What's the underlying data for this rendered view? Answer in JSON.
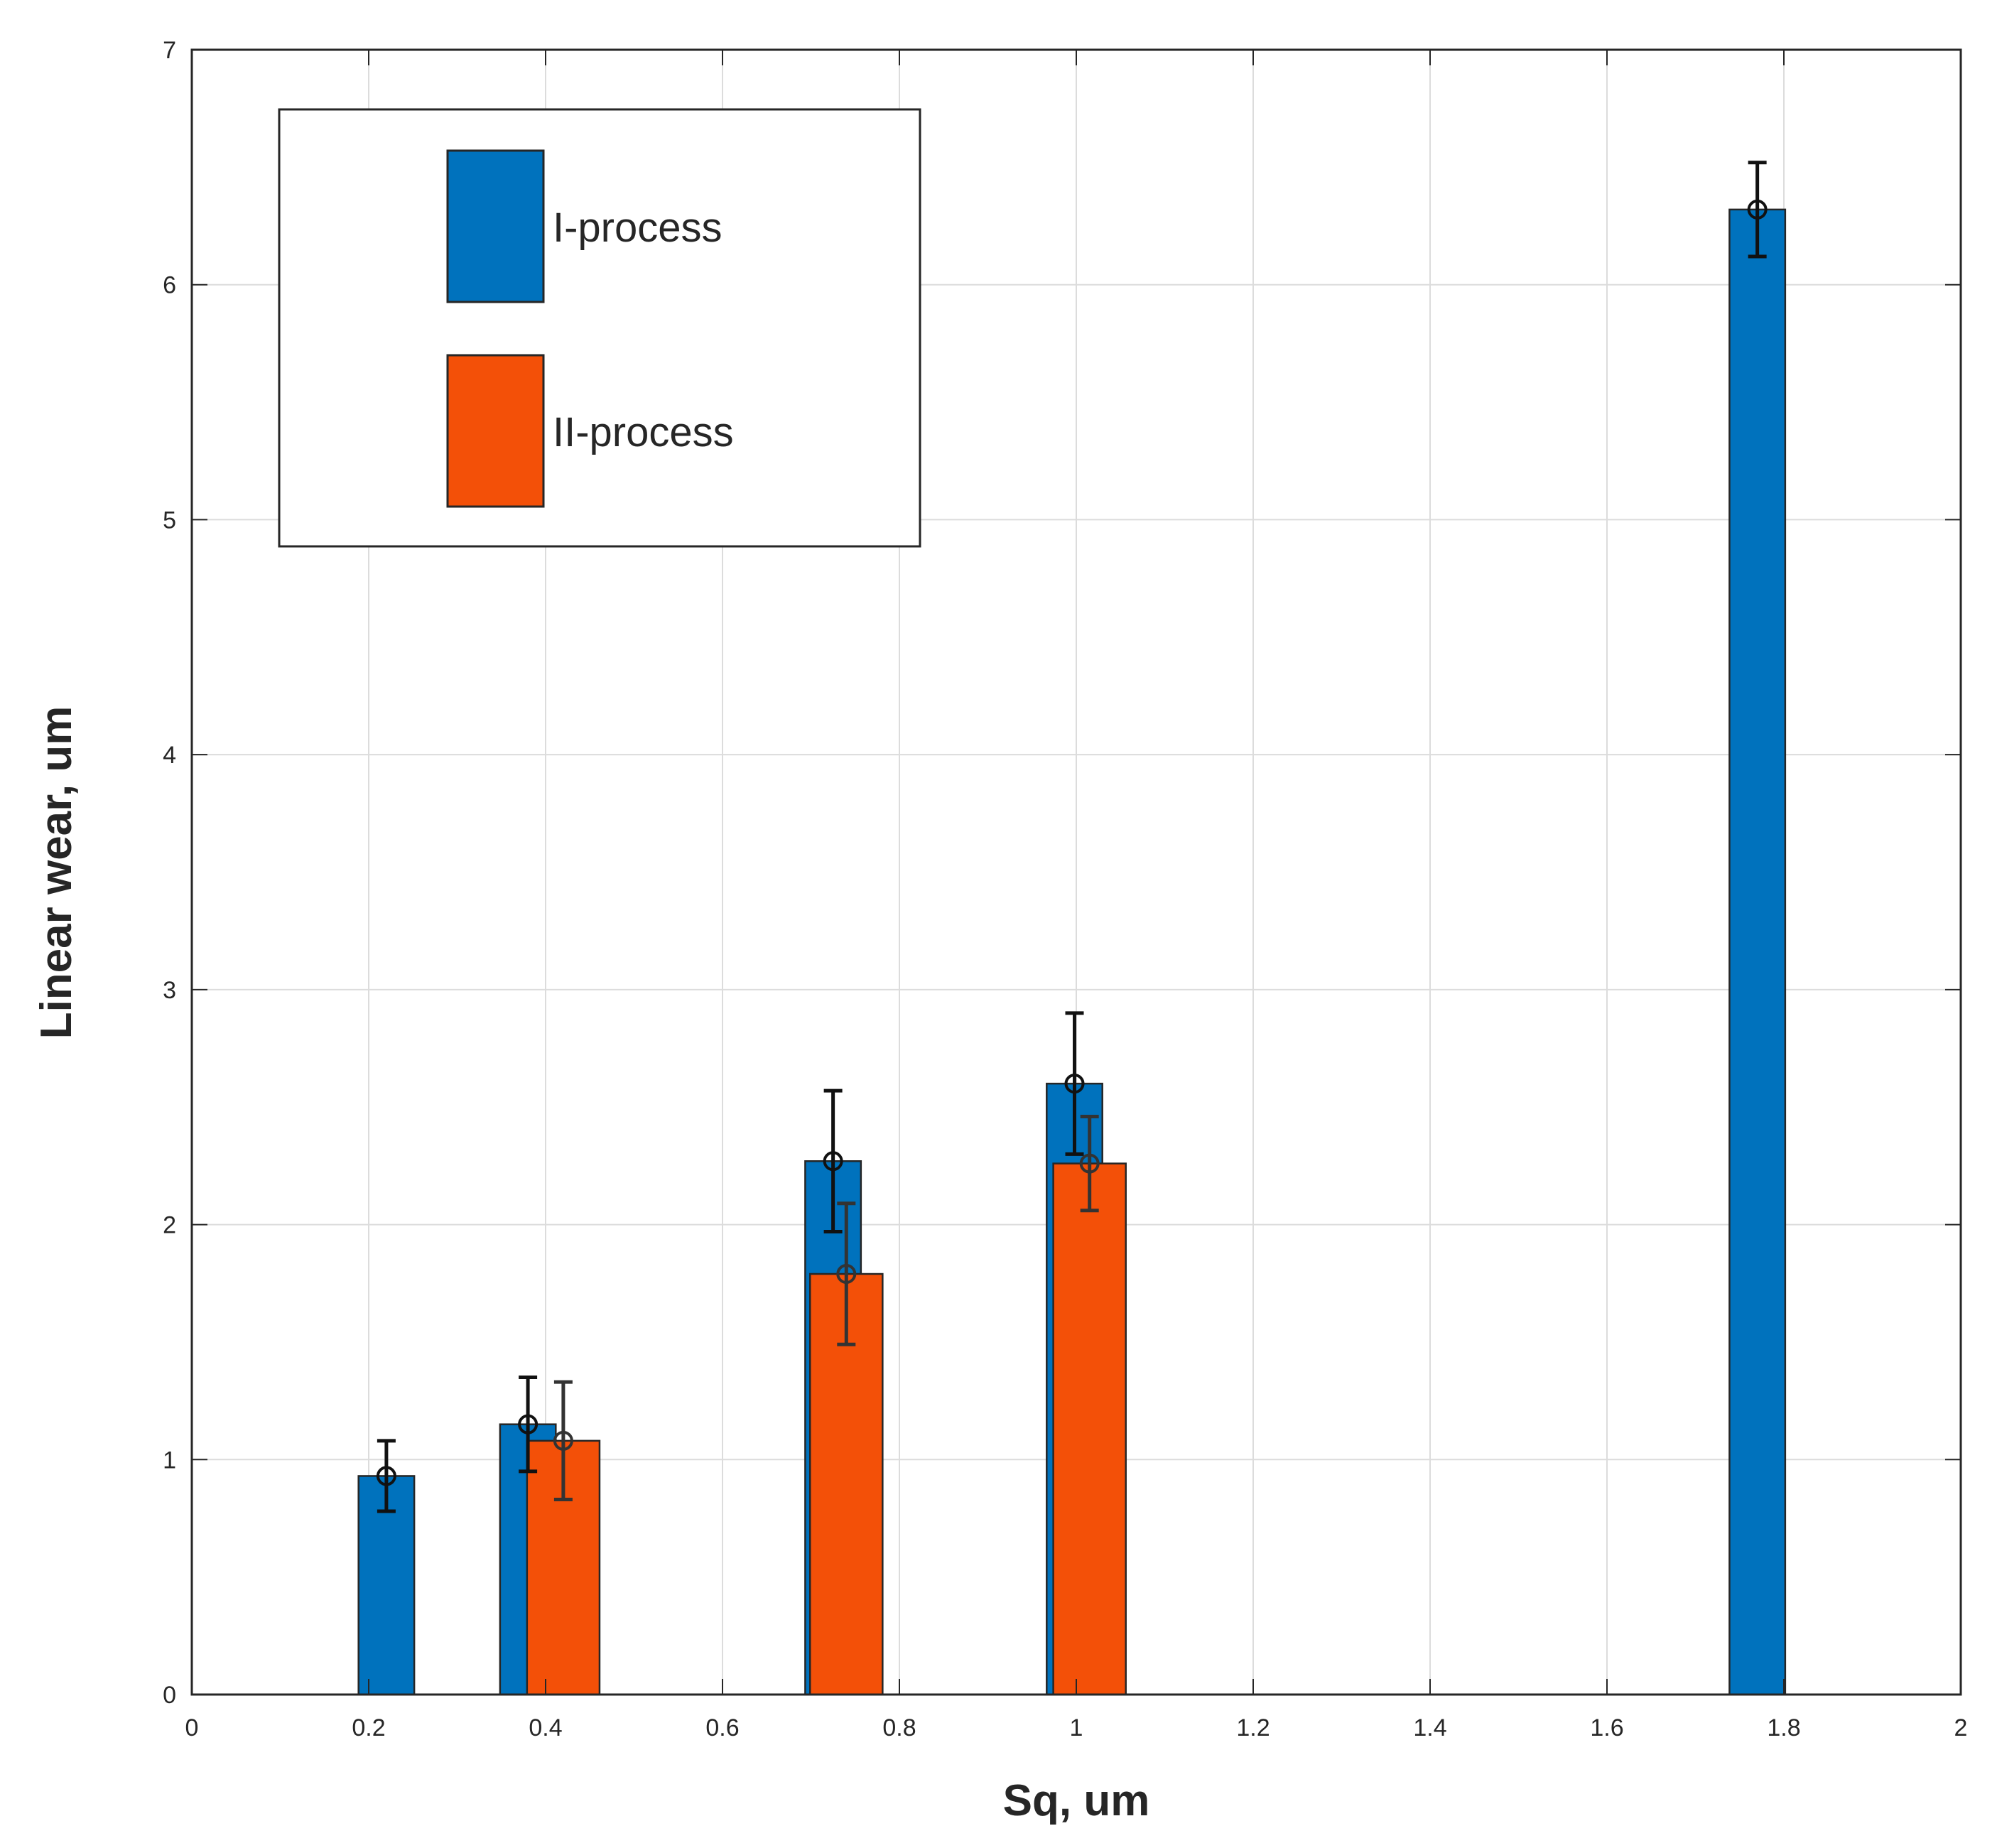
{
  "chart_data": {
    "type": "bar",
    "title": "",
    "xlabel": "Sq, um",
    "ylabel": "Linear wear, um",
    "xlim": [
      0,
      2
    ],
    "ylim": [
      0,
      7
    ],
    "xticks": [
      0,
      0.2,
      0.4,
      0.6,
      0.8,
      1,
      1.2,
      1.4,
      1.6,
      1.8,
      2
    ],
    "xtick_labels": [
      "0",
      "0.2",
      "0.4",
      "0.6",
      "0.8",
      "1",
      "1.2",
      "1.4",
      "1.6",
      "1.8",
      "2"
    ],
    "yticks": [
      0,
      1,
      2,
      3,
      4,
      5,
      6,
      7
    ],
    "ytick_labels": [
      "0",
      "1",
      "2",
      "3",
      "4",
      "5",
      "6",
      "7"
    ],
    "grid": true,
    "legend_position": "top-left",
    "series": [
      {
        "name": "I-process",
        "color": "#0072BD",
        "bar_width": 0.063,
        "points": [
          {
            "x": 0.22,
            "y": 0.93,
            "err_low": 0.15,
            "err_high": 0.15
          },
          {
            "x": 0.38,
            "y": 1.15,
            "err_low": 0.2,
            "err_high": 0.2
          },
          {
            "x": 0.725,
            "y": 2.27,
            "err_low": 0.3,
            "err_high": 0.3
          },
          {
            "x": 0.998,
            "y": 2.6,
            "err_low": 0.3,
            "err_high": 0.3
          },
          {
            "x": 1.77,
            "y": 6.32,
            "err_low": 0.2,
            "err_high": 0.2
          }
        ]
      },
      {
        "name": "II-process",
        "color": "#F35008",
        "bar_width": 0.082,
        "points": [
          {
            "x": 0.42,
            "y": 1.08,
            "err_low": 0.25,
            "err_high": 0.25
          },
          {
            "x": 0.74,
            "y": 1.79,
            "err_low": 0.3,
            "err_high": 0.3
          },
          {
            "x": 1.015,
            "y": 2.26,
            "err_low": 0.2,
            "err_high": 0.2
          }
        ]
      }
    ]
  }
}
